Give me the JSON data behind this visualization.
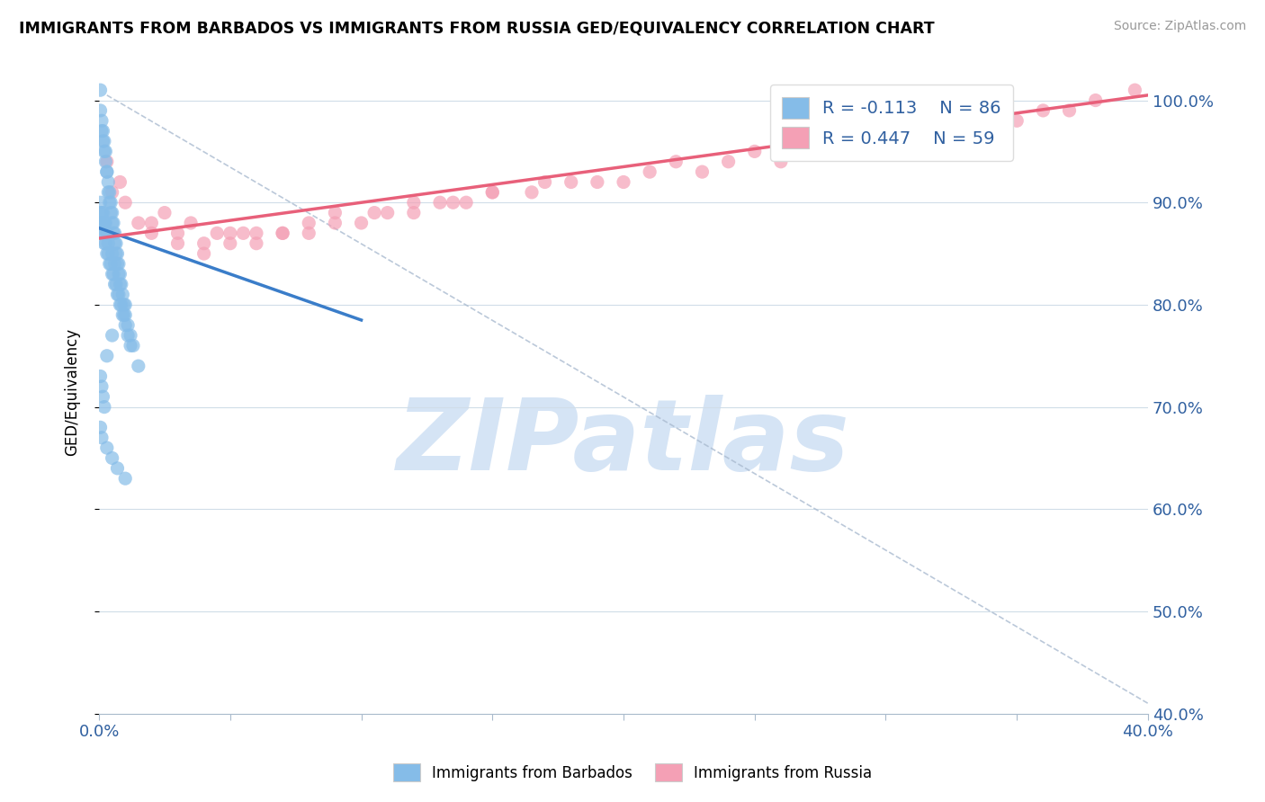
{
  "title": "IMMIGRANTS FROM BARBADOS VS IMMIGRANTS FROM RUSSIA GED/EQUIVALENCY CORRELATION CHART",
  "source": "Source: ZipAtlas.com",
  "ylabel_label": "GED/Equivalency",
  "legend_blue_r": "R = -0.113",
  "legend_blue_n": "N = 86",
  "legend_pink_r": "R = 0.447",
  "legend_pink_n": "N = 59",
  "legend_label_blue": "Immigrants from Barbados",
  "legend_label_pink": "Immigrants from Russia",
  "blue_color": "#85BCE8",
  "pink_color": "#F4A0B5",
  "blue_line_color": "#3A7DC9",
  "pink_line_color": "#E8607A",
  "text_blue": "#3060A0",
  "watermark_color": "#D5E4F5",
  "watermark_text": "ZIPatlas",
  "xmin": 0.0,
  "xmax": 40.0,
  "ymin": 40.0,
  "ymax": 103.0,
  "barbados_x": [
    0.05,
    0.05,
    0.1,
    0.1,
    0.15,
    0.15,
    0.2,
    0.2,
    0.25,
    0.25,
    0.3,
    0.3,
    0.35,
    0.35,
    0.4,
    0.4,
    0.45,
    0.45,
    0.5,
    0.5,
    0.55,
    0.55,
    0.6,
    0.6,
    0.65,
    0.65,
    0.7,
    0.7,
    0.75,
    0.75,
    0.8,
    0.8,
    0.85,
    0.9,
    0.95,
    1.0,
    1.0,
    1.1,
    1.2,
    1.3,
    1.5,
    0.05,
    0.05,
    0.1,
    0.1,
    0.15,
    0.2,
    0.25,
    0.3,
    0.35,
    0.4,
    0.45,
    0.5,
    0.55,
    0.6,
    0.65,
    0.7,
    0.75,
    0.8,
    0.85,
    0.9,
    0.95,
    1.0,
    1.1,
    1.2,
    0.05,
    0.1,
    0.15,
    0.2,
    0.25,
    0.3,
    0.35,
    0.5,
    0.6,
    0.05,
    0.1,
    0.15,
    0.2,
    0.05,
    0.1,
    0.3,
    0.5,
    0.7,
    1.0,
    0.3,
    0.5
  ],
  "barbados_y": [
    101,
    99,
    98,
    97,
    97,
    96,
    96,
    95,
    95,
    94,
    93,
    93,
    92,
    91,
    91,
    90,
    90,
    89,
    89,
    88,
    88,
    87,
    87,
    86,
    86,
    85,
    85,
    84,
    84,
    83,
    83,
    82,
    82,
    81,
    80,
    80,
    79,
    78,
    77,
    76,
    74,
    89,
    88,
    88,
    87,
    87,
    86,
    86,
    85,
    85,
    84,
    84,
    83,
    83,
    82,
    82,
    81,
    81,
    80,
    80,
    79,
    79,
    78,
    77,
    76,
    90,
    89,
    89,
    88,
    88,
    87,
    86,
    85,
    84,
    73,
    72,
    71,
    70,
    68,
    67,
    66,
    65,
    64,
    63,
    75,
    77
  ],
  "russia_x": [
    0.3,
    0.5,
    0.8,
    1.0,
    1.5,
    2.0,
    2.5,
    3.0,
    3.5,
    4.0,
    4.5,
    5.0,
    5.5,
    6.0,
    7.0,
    8.0,
    9.0,
    10.0,
    11.0,
    12.0,
    13.0,
    14.0,
    15.0,
    17.0,
    19.0,
    22.0,
    25.0,
    28.0,
    31.0,
    34.0,
    37.0,
    39.5,
    2.0,
    3.0,
    5.0,
    7.0,
    9.0,
    12.0,
    15.0,
    18.0,
    21.0,
    24.0,
    27.0,
    30.0,
    33.0,
    36.0,
    4.0,
    6.0,
    8.0,
    10.5,
    13.5,
    16.5,
    20.0,
    23.0,
    26.0,
    29.0,
    32.0,
    35.0,
    38.0
  ],
  "russia_y": [
    94,
    91,
    92,
    90,
    88,
    87,
    89,
    86,
    88,
    85,
    87,
    86,
    87,
    86,
    87,
    87,
    88,
    88,
    89,
    89,
    90,
    90,
    91,
    92,
    92,
    94,
    95,
    96,
    97,
    98,
    99,
    101,
    88,
    87,
    87,
    87,
    89,
    90,
    91,
    92,
    93,
    94,
    95,
    96,
    97,
    99,
    86,
    87,
    88,
    89,
    90,
    91,
    92,
    93,
    94,
    95,
    96,
    98,
    100
  ],
  "barbados_trendline_x": [
    0.0,
    10.0
  ],
  "barbados_trendline_y": [
    87.5,
    78.5
  ],
  "russia_trendline_x": [
    0.0,
    40.0
  ],
  "russia_trendline_y": [
    86.5,
    100.5
  ],
  "diag_line_x": [
    0.3,
    40.0
  ],
  "diag_line_y": [
    100.5,
    41.0
  ]
}
